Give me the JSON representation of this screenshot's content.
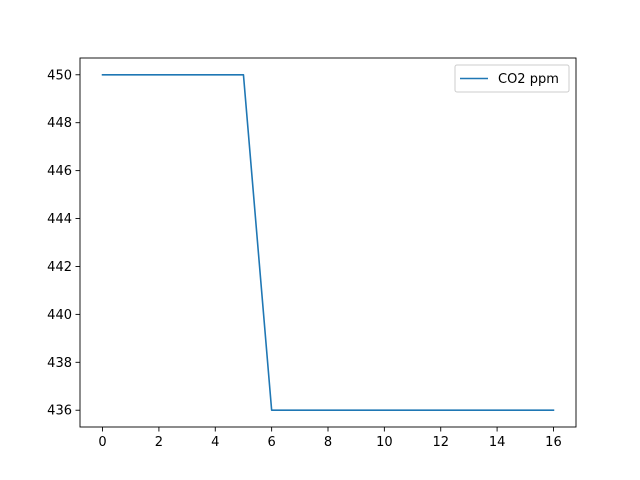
{
  "chart_data": {
    "type": "line",
    "title": "",
    "xlabel": "",
    "ylabel": "",
    "x": [
      0,
      1,
      2,
      3,
      4,
      5,
      6,
      7,
      8,
      9,
      10,
      11,
      12,
      13,
      14,
      15,
      16
    ],
    "series": [
      {
        "name": "CO2 ppm",
        "color": "#1f77b4",
        "values": [
          450,
          450,
          450,
          450,
          450,
          450,
          436,
          436,
          436,
          436,
          436,
          436,
          436,
          436,
          436,
          436,
          436
        ]
      }
    ],
    "xlim": [
      -0.8,
      16.8
    ],
    "ylim": [
      435.3,
      450.7
    ],
    "xticks": [
      0,
      2,
      4,
      6,
      8,
      10,
      12,
      14,
      16
    ],
    "yticks": [
      436,
      438,
      440,
      442,
      444,
      446,
      448,
      450
    ],
    "grid": false,
    "legend": "top-right"
  }
}
